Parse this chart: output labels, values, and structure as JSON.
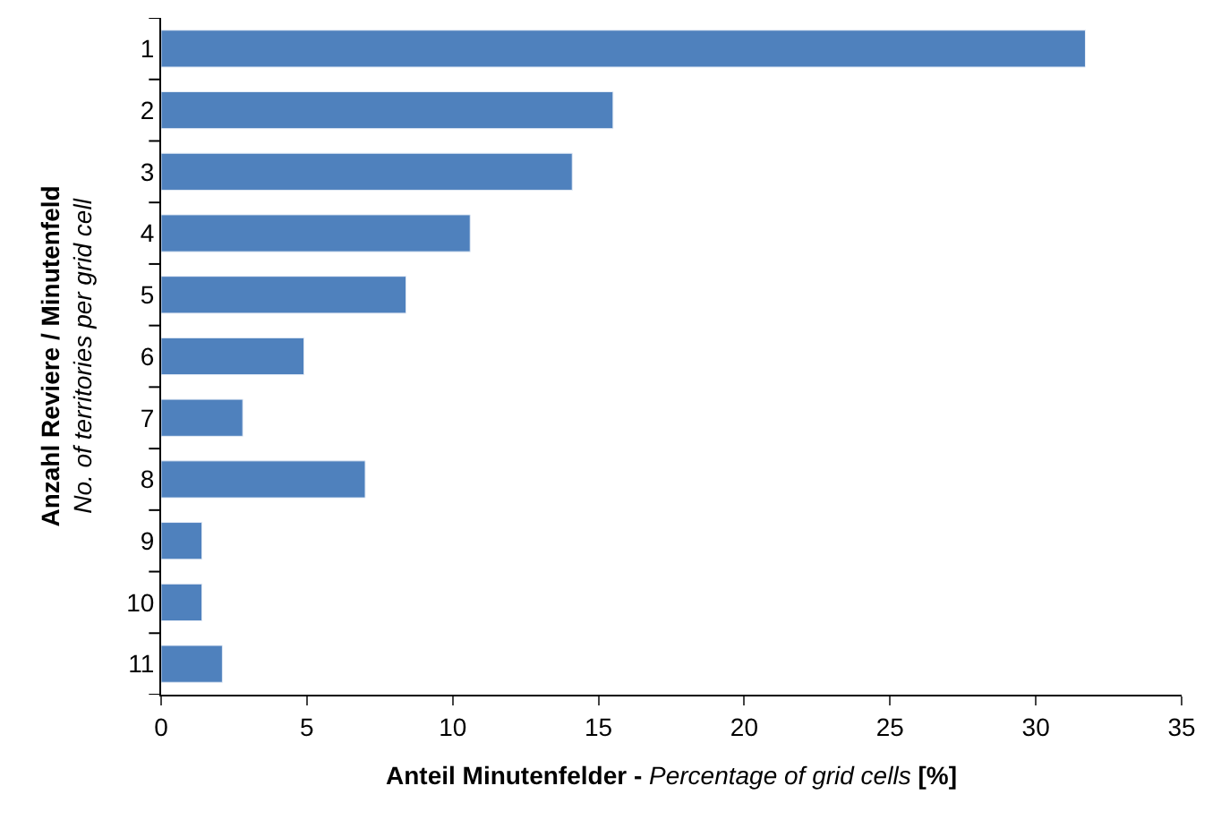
{
  "chart_data": {
    "type": "bar",
    "orientation": "horizontal",
    "xlabel": "Anteil Minutenfelder - Percentage of grid cells [%]",
    "ylabel": "Anzahl Reviere / Minutenfeld\nNo. of territories per grid cell",
    "categories": [
      "1",
      "2",
      "3",
      "4",
      "5",
      "6",
      "7",
      "8",
      "9",
      "10",
      "11"
    ],
    "values": [
      31.7,
      15.5,
      14.1,
      10.6,
      8.4,
      4.9,
      2.8,
      7.0,
      1.4,
      1.4,
      2.1
    ],
    "color": "#4f81bd",
    "xlim": [
      0,
      35
    ],
    "xticks": [
      0,
      5,
      10,
      15,
      20,
      25,
      30,
      35
    ]
  }
}
